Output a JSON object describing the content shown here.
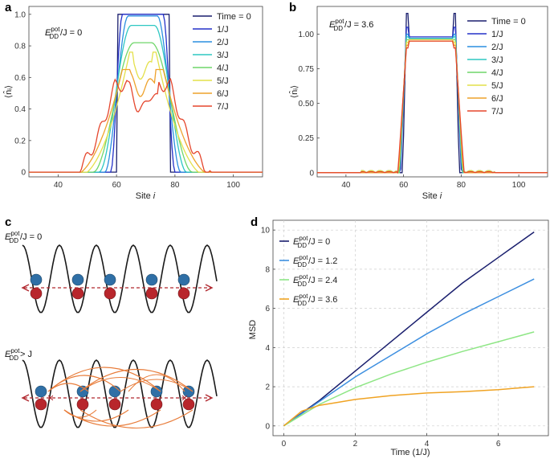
{
  "panels": {
    "a": "a",
    "b": "b",
    "c": "c",
    "d": "d"
  },
  "panel_a": {
    "annotation": {
      "prefix": "E",
      "sup": "pot",
      "sub": "DD",
      "rest": "/J = 0"
    },
    "xlabel": {
      "main": "Site ",
      "italic": "i"
    },
    "ylabel": "⟨n̂ᵢ⟩"
  },
  "panel_b": {
    "annotation": {
      "prefix": "E",
      "sup": "pot",
      "sub": "DD",
      "rest": "/J = 3.6"
    },
    "xlabel": {
      "main": "Site ",
      "italic": "i"
    },
    "ylabel": "⟨n̂ᵢ⟩"
  },
  "panel_c": {
    "top_label": {
      "prefix": "E",
      "sup": "pot",
      "sub": "DD",
      "rest": "/J = 0"
    },
    "bottom_label": {
      "prefix": "E",
      "sup": "pot",
      "sub": "DD",
      "rest": "> J"
    },
    "blocked_mark": "✕"
  },
  "colors": {
    "time": [
      "#1a1f6e",
      "#2431c9",
      "#2b8fe0",
      "#2ec7c2",
      "#6fd66a",
      "#e4e04a",
      "#eea22c",
      "#e5462d"
    ],
    "msd": [
      "#1a1f6e",
      "#3d8fe0",
      "#8ee685",
      "#f0a323"
    ],
    "blue_ball": "#2f6fa6",
    "red_ball": "#b8262c",
    "arrow": "#e87c3a",
    "dashed": "#b1282f"
  },
  "chart_data": [
    {
      "id": "a",
      "type": "line",
      "title": "",
      "xlabel": "Site i",
      "ylabel": "⟨n̂i⟩",
      "xlim": [
        30,
        110
      ],
      "ylim": [
        -0.03,
        1.05
      ],
      "xticks": [
        40,
        60,
        80,
        100
      ],
      "yticks": [
        0,
        0.2,
        0.4,
        0.6,
        0.8,
        1.0
      ],
      "ytick_labels": [
        "0",
        "0.2",
        "0.4",
        "0.6",
        "0.8",
        "1.0"
      ],
      "legend": [
        "Time = 0",
        "1/J",
        "2/J",
        "3/J",
        "4/J",
        "5/J",
        "6/J",
        "7/J"
      ],
      "legend_position": "top-right",
      "series": [
        {
          "name": "Time = 0",
          "plateau": 1.0,
          "left_foot": 60,
          "left_top": 60.5,
          "right_top": 78,
          "right_foot": 78.5
        },
        {
          "name": "1/J",
          "plateau": 1.0,
          "left_foot": 58,
          "left_top": 62,
          "right_top": 76,
          "right_foot": 80
        },
        {
          "name": "2/J",
          "plateau": 0.99,
          "left_foot": 56,
          "left_top": 64,
          "right_top": 74,
          "right_foot": 82
        },
        {
          "name": "3/J",
          "plateau": 0.93,
          "left_foot": 54,
          "left_top": 65,
          "right_top": 73,
          "right_foot": 84
        },
        {
          "name": "4/J",
          "plateau": 0.82,
          "left_foot": 52,
          "left_top": 66,
          "right_top": 72,
          "right_foot": 86
        },
        {
          "name": "5/J",
          "plateau": 0.71,
          "left_foot": 50,
          "left_top": 66,
          "right_top": 72,
          "right_foot": 88
        },
        {
          "name": "6/J",
          "plateau": 0.6,
          "left_foot": 48,
          "left_top": 65,
          "right_top": 73,
          "right_foot": 90
        },
        {
          "name": "7/J",
          "plateau": 0.5,
          "left_foot": 46,
          "left_top": 64,
          "right_top": 74,
          "right_foot": 92
        }
      ]
    },
    {
      "id": "b",
      "type": "line",
      "title": "",
      "xlabel": "Site i",
      "ylabel": "⟨n̂i⟩",
      "xlim": [
        30,
        110
      ],
      "ylim": [
        -0.03,
        1.2
      ],
      "xticks": [
        40,
        60,
        80,
        100
      ],
      "yticks": [
        0,
        0.25,
        0.5,
        0.75,
        1.0
      ],
      "ytick_labels": [
        "0",
        "0.25",
        "0.50",
        "0.75",
        "1.00"
      ],
      "legend": [
        "Time = 0",
        "1/J",
        "2/J",
        "3/J",
        "4/J",
        "5/J",
        "6/J",
        "7/J"
      ],
      "legend_position": "top-right",
      "series": [
        {
          "name": "Time = 0",
          "plateau": 0.97,
          "edge_peak": 1.15
        },
        {
          "name": "1/J",
          "plateau": 0.98,
          "edge_peak": 1.05
        },
        {
          "name": "2/J",
          "plateau": 0.97,
          "edge_peak": 1.0
        },
        {
          "name": "3/J",
          "plateau": 0.97,
          "edge_peak": 0.98
        },
        {
          "name": "4/J",
          "plateau": 0.96,
          "edge_peak": 0.96
        },
        {
          "name": "5/J",
          "plateau": 0.96,
          "edge_peak": 0.94
        },
        {
          "name": "6/J",
          "plateau": 0.95,
          "edge_peak": 0.92
        },
        {
          "name": "7/J",
          "plateau": 0.95,
          "edge_peak": 0.9
        }
      ]
    },
    {
      "id": "d",
      "type": "line",
      "title": "",
      "xlabel": "Time (1/J)",
      "ylabel": "MSD",
      "xlim": [
        -0.3,
        7.4
      ],
      "ylim": [
        -0.5,
        10.5
      ],
      "xticks": [
        0,
        2,
        4,
        6
      ],
      "yticks": [
        0,
        2,
        4,
        6,
        8,
        10
      ],
      "grid": true,
      "legend": [
        "E_DD^pot/J = 0",
        "E_DD^pot/J = 1.2",
        "E_DD^pot/J = 2.4",
        "E_DD^pot/J = 3.6"
      ],
      "legend_entries": [
        {
          "prefix": "E",
          "sup": "pot",
          "sub": "DD",
          "rest": "/J = 0"
        },
        {
          "prefix": "E",
          "sup": "pot",
          "sub": "DD",
          "rest": "/J = 1.2"
        },
        {
          "prefix": "E",
          "sup": "pot",
          "sub": "DD",
          "rest": "/J = 2.4"
        },
        {
          "prefix": "E",
          "sup": "pot",
          "sub": "DD",
          "rest": "/J = 3.6"
        }
      ],
      "legend_position": "top-left",
      "series": [
        {
          "name": "E_DD^pot/J = 0",
          "x": [
            0,
            1,
            2,
            3,
            4,
            5,
            6,
            7
          ],
          "values": [
            0,
            1.3,
            2.8,
            4.3,
            5.8,
            7.3,
            8.6,
            9.9
          ]
        },
        {
          "name": "E_DD^pot/J = 1.2",
          "x": [
            0,
            1,
            2,
            3,
            4,
            5,
            6,
            7
          ],
          "values": [
            0,
            1.25,
            2.5,
            3.6,
            4.7,
            5.7,
            6.6,
            7.5
          ]
        },
        {
          "name": "E_DD^pot/J = 2.4",
          "x": [
            0,
            1,
            2,
            3,
            4,
            5,
            6,
            7
          ],
          "values": [
            0,
            1.1,
            1.95,
            2.65,
            3.25,
            3.8,
            4.3,
            4.8
          ]
        },
        {
          "name": "E_DD^pot/J = 3.6",
          "x": [
            0,
            0.5,
            1,
            1.5,
            2,
            3,
            4,
            5,
            6,
            7
          ],
          "values": [
            0,
            0.75,
            1.05,
            1.2,
            1.35,
            1.55,
            1.68,
            1.75,
            1.85,
            2.0
          ]
        }
      ]
    }
  ]
}
